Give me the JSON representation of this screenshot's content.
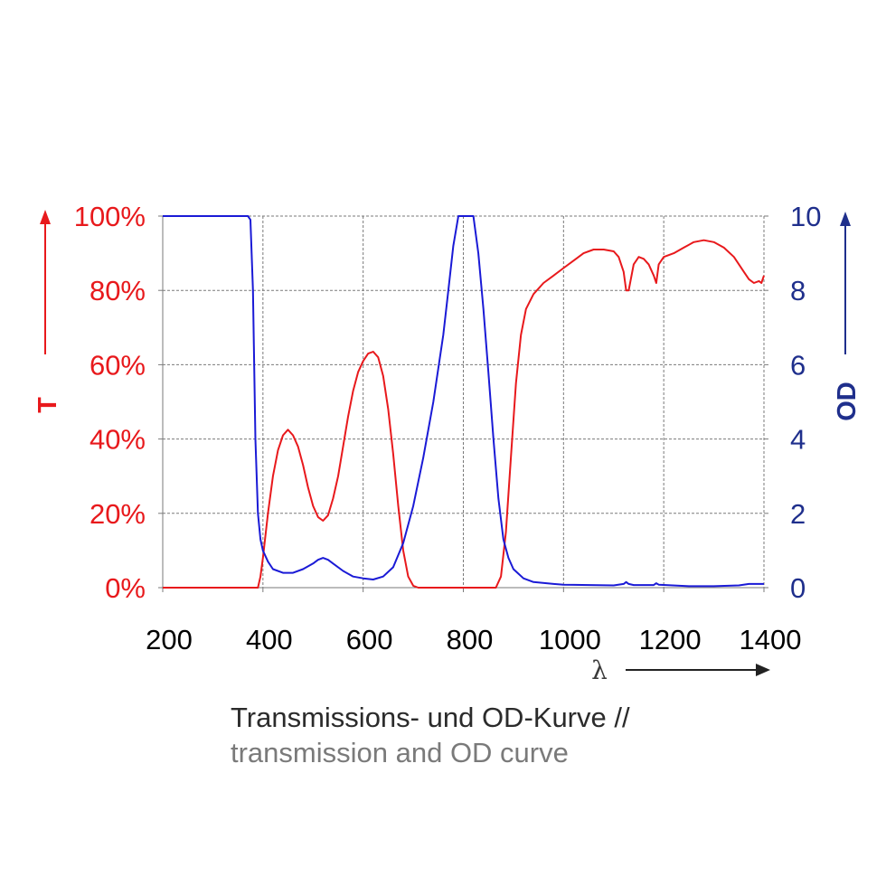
{
  "caption": {
    "line1": "Transmissions- und OD-Kurve //",
    "line2": "transmission and OD curve"
  },
  "chart_data": {
    "type": "line",
    "xlabel": "λ",
    "x_ticks": [
      "200",
      "400",
      "600",
      "800",
      "1000",
      "1200",
      "1400"
    ],
    "xlim": [
      200,
      1400
    ],
    "left_axis": {
      "label": "T",
      "ticks": [
        "0%",
        "20%",
        "40%",
        "60%",
        "80%",
        "100%"
      ],
      "ylim": [
        0,
        100
      ],
      "color": "#e8191c"
    },
    "right_axis": {
      "label": "OD",
      "ticks": [
        "0",
        "2",
        "4",
        "6",
        "8",
        "10"
      ],
      "ylim": [
        0,
        10
      ],
      "color": "#1f2f8c"
    },
    "grid": true,
    "series": [
      {
        "axis": "left",
        "color": "#e8191c",
        "points": [
          [
            200,
            0
          ],
          [
            390,
            0
          ],
          [
            395,
            3
          ],
          [
            400,
            8
          ],
          [
            410,
            20
          ],
          [
            420,
            30
          ],
          [
            430,
            37
          ],
          [
            440,
            41
          ],
          [
            450,
            42.5
          ],
          [
            460,
            41
          ],
          [
            470,
            38
          ],
          [
            480,
            33
          ],
          [
            490,
            27
          ],
          [
            500,
            22
          ],
          [
            510,
            19
          ],
          [
            520,
            18
          ],
          [
            530,
            19.5
          ],
          [
            540,
            24
          ],
          [
            550,
            30
          ],
          [
            560,
            38
          ],
          [
            570,
            46
          ],
          [
            580,
            53
          ],
          [
            590,
            58
          ],
          [
            600,
            61
          ],
          [
            610,
            63
          ],
          [
            620,
            63.5
          ],
          [
            630,
            62
          ],
          [
            640,
            57
          ],
          [
            650,
            48
          ],
          [
            660,
            36
          ],
          [
            670,
            22
          ],
          [
            680,
            10
          ],
          [
            690,
            3
          ],
          [
            700,
            0.5
          ],
          [
            710,
            0
          ],
          [
            865,
            0
          ],
          [
            875,
            3
          ],
          [
            885,
            15
          ],
          [
            895,
            35
          ],
          [
            905,
            55
          ],
          [
            915,
            68
          ],
          [
            925,
            75
          ],
          [
            940,
            79
          ],
          [
            960,
            82
          ],
          [
            980,
            84
          ],
          [
            1000,
            86
          ],
          [
            1020,
            88
          ],
          [
            1040,
            90
          ],
          [
            1060,
            91
          ],
          [
            1080,
            91
          ],
          [
            1100,
            90.5
          ],
          [
            1110,
            89
          ],
          [
            1120,
            85
          ],
          [
            1125,
            80
          ],
          [
            1130,
            80
          ],
          [
            1140,
            87
          ],
          [
            1150,
            89
          ],
          [
            1160,
            88.5
          ],
          [
            1170,
            87
          ],
          [
            1180,
            84
          ],
          [
            1185,
            82
          ],
          [
            1190,
            87
          ],
          [
            1200,
            89
          ],
          [
            1220,
            90
          ],
          [
            1240,
            91.5
          ],
          [
            1260,
            93
          ],
          [
            1280,
            93.5
          ],
          [
            1300,
            93
          ],
          [
            1320,
            91.5
          ],
          [
            1340,
            89
          ],
          [
            1360,
            85
          ],
          [
            1370,
            83
          ],
          [
            1380,
            82
          ],
          [
            1390,
            82.5
          ],
          [
            1395,
            82
          ],
          [
            1400,
            84
          ]
        ]
      },
      {
        "axis": "right",
        "color": "#1a1ad6",
        "points": [
          [
            200,
            10
          ],
          [
            370,
            10
          ],
          [
            375,
            9.9
          ],
          [
            380,
            8
          ],
          [
            385,
            4
          ],
          [
            390,
            2
          ],
          [
            395,
            1.3
          ],
          [
            400,
            1
          ],
          [
            410,
            0.7
          ],
          [
            420,
            0.5
          ],
          [
            440,
            0.4
          ],
          [
            460,
            0.4
          ],
          [
            480,
            0.5
          ],
          [
            500,
            0.65
          ],
          [
            510,
            0.75
          ],
          [
            520,
            0.8
          ],
          [
            530,
            0.75
          ],
          [
            540,
            0.65
          ],
          [
            560,
            0.45
          ],
          [
            580,
            0.3
          ],
          [
            600,
            0.25
          ],
          [
            620,
            0.22
          ],
          [
            640,
            0.3
          ],
          [
            660,
            0.55
          ],
          [
            680,
            1.2
          ],
          [
            700,
            2.2
          ],
          [
            720,
            3.5
          ],
          [
            740,
            5
          ],
          [
            760,
            6.8
          ],
          [
            770,
            8
          ],
          [
            780,
            9.2
          ],
          [
            790,
            10
          ],
          [
            820,
            10
          ],
          [
            830,
            9
          ],
          [
            840,
            7.5
          ],
          [
            850,
            5.8
          ],
          [
            860,
            4
          ],
          [
            870,
            2.4
          ],
          [
            880,
            1.3
          ],
          [
            890,
            0.8
          ],
          [
            900,
            0.5
          ],
          [
            920,
            0.25
          ],
          [
            940,
            0.15
          ],
          [
            980,
            0.1
          ],
          [
            1000,
            0.08
          ],
          [
            1100,
            0.06
          ],
          [
            1120,
            0.1
          ],
          [
            1125,
            0.15
          ],
          [
            1130,
            0.1
          ],
          [
            1140,
            0.07
          ],
          [
            1180,
            0.07
          ],
          [
            1185,
            0.12
          ],
          [
            1190,
            0.08
          ],
          [
            1250,
            0.04
          ],
          [
            1300,
            0.04
          ],
          [
            1350,
            0.06
          ],
          [
            1370,
            0.1
          ],
          [
            1400,
            0.1
          ]
        ]
      }
    ]
  }
}
